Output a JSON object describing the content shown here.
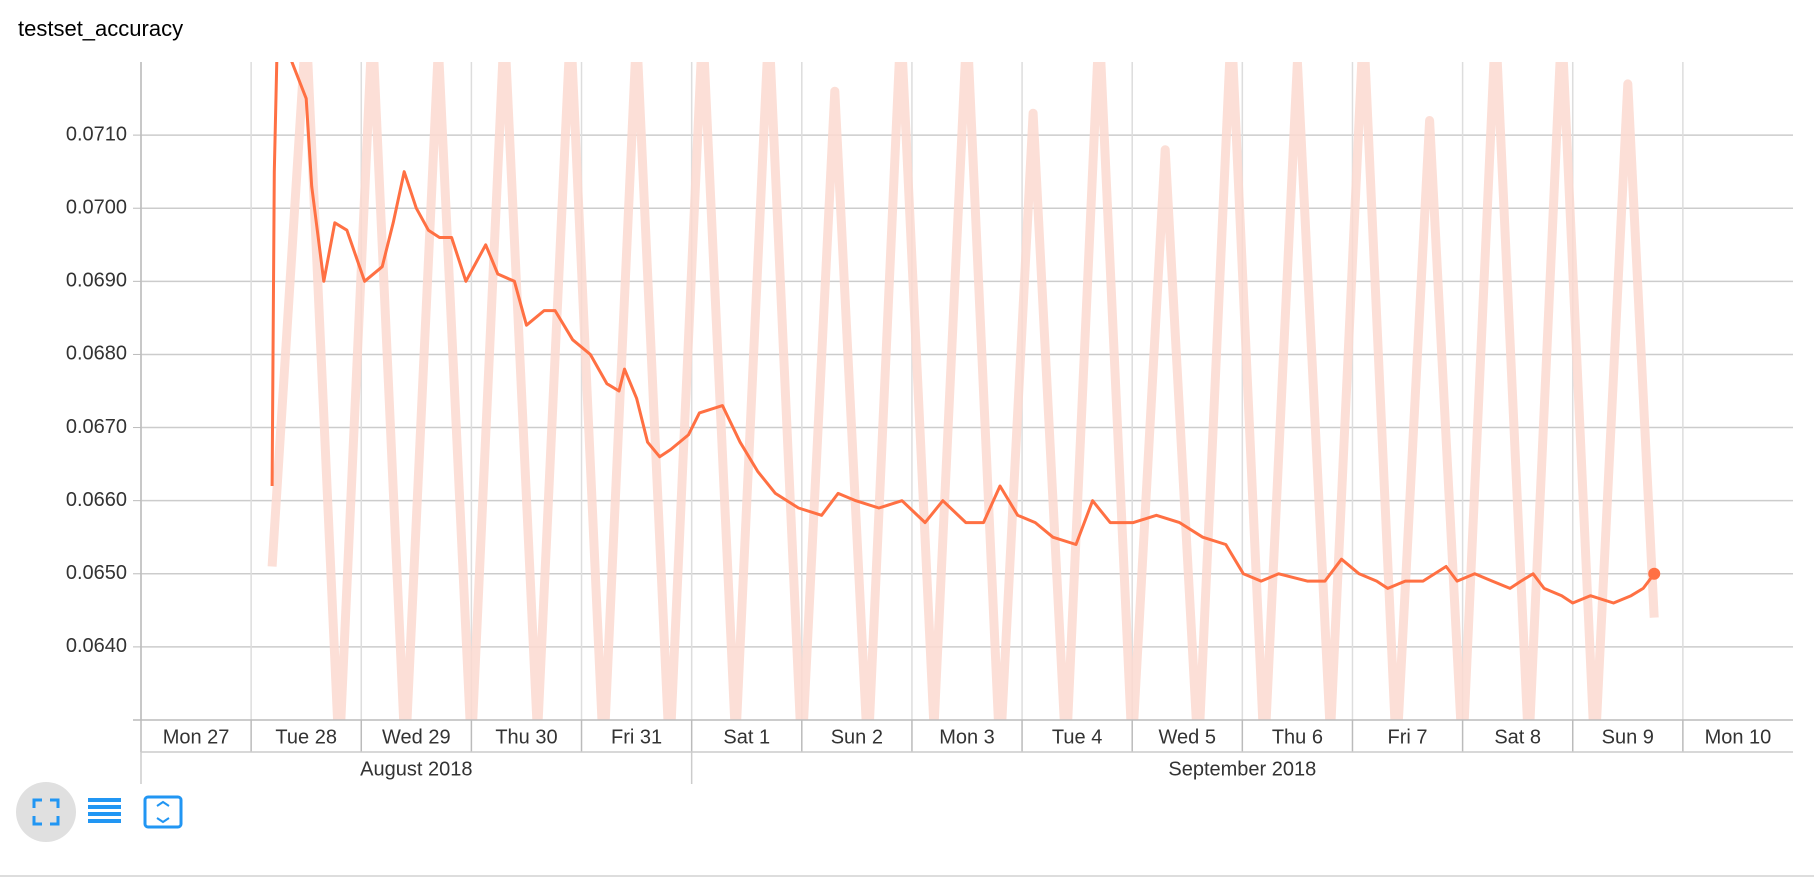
{
  "chart_data": {
    "type": "line",
    "title": "testset_accuracy",
    "xlim": [
      0,
      15
    ],
    "xticks": [
      {
        "value": 0,
        "label": "Mon 27"
      },
      {
        "value": 1,
        "label": "Tue 28"
      },
      {
        "value": 2,
        "label": "Wed 29"
      },
      {
        "value": 3,
        "label": "Thu 30"
      },
      {
        "value": 4,
        "label": "Fri 31"
      },
      {
        "value": 5,
        "label": "Sat 1"
      },
      {
        "value": 6,
        "label": "Sun 2"
      },
      {
        "value": 7,
        "label": "Mon 3"
      },
      {
        "value": 8,
        "label": "Tue 4"
      },
      {
        "value": 9,
        "label": "Wed 5"
      },
      {
        "value": 10,
        "label": "Thu 6"
      },
      {
        "value": 11,
        "label": "Fri 7"
      },
      {
        "value": 12,
        "label": "Sat 8"
      },
      {
        "value": 13,
        "label": "Sun 9"
      },
      {
        "value": 14,
        "label": "Mon 10"
      }
    ],
    "x_groups": [
      {
        "label": "August 2018",
        "start": 0,
        "end": 5
      },
      {
        "label": "September 2018",
        "start": 5,
        "end": 15
      }
    ],
    "ylim": [
      0.063,
      0.072
    ],
    "yticks": [
      {
        "value": 0.064,
        "label": "0.0640"
      },
      {
        "value": 0.065,
        "label": "0.0650"
      },
      {
        "value": 0.066,
        "label": "0.0660"
      },
      {
        "value": 0.067,
        "label": "0.0670"
      },
      {
        "value": 0.068,
        "label": "0.0680"
      },
      {
        "value": 0.069,
        "label": "0.0690"
      },
      {
        "value": 0.07,
        "label": "0.0700"
      },
      {
        "value": 0.071,
        "label": "0.0710"
      }
    ],
    "grid": true,
    "series": [
      {
        "color": "#fcd9d0",
        "x": [
          1.19,
          1.5,
          1.8,
          2.1,
          2.4,
          2.7,
          3.0,
          3.3,
          3.6,
          3.9,
          4.2,
          4.5,
          4.8,
          5.1,
          5.4,
          5.7,
          6.0,
          6.3,
          6.6,
          6.9,
          7.2,
          7.5,
          7.8,
          8.1,
          8.4,
          8.7,
          9.0,
          9.3,
          9.6,
          9.9,
          10.2,
          10.5,
          10.8,
          11.1,
          11.4,
          11.7,
          12.0,
          12.3,
          12.6,
          12.9,
          13.2,
          13.5,
          13.74
        ],
        "values": [
          0.0651,
          0.0725,
          0.0625,
          0.0725,
          0.0625,
          0.0722,
          0.0626,
          0.0725,
          0.0628,
          0.0725,
          0.0625,
          0.0724,
          0.0625,
          0.0725,
          0.0627,
          0.0725,
          0.0625,
          0.0716,
          0.0625,
          0.0725,
          0.0629,
          0.0725,
          0.0625,
          0.0713,
          0.0625,
          0.0725,
          0.0626,
          0.0708,
          0.0625,
          0.0725,
          0.0625,
          0.072,
          0.0628,
          0.0725,
          0.0625,
          0.0712,
          0.0625,
          0.0725,
          0.0626,
          0.0725,
          0.0625,
          0.0717,
          0.0644
        ]
      },
      {
        "color": "#ff7043",
        "x": [
          1.19,
          1.21,
          1.24,
          1.5,
          1.55,
          1.66,
          1.76,
          1.87,
          2.03,
          2.19,
          2.29,
          2.39,
          2.5,
          2.61,
          2.71,
          2.82,
          2.95,
          3.13,
          3.24,
          3.39,
          3.5,
          3.66,
          3.76,
          3.92,
          4.08,
          4.23,
          4.34,
          4.39,
          4.5,
          4.6,
          4.71,
          4.81,
          4.97,
          5.07,
          5.28,
          5.44,
          5.6,
          5.76,
          5.97,
          6.18,
          6.33,
          6.49,
          6.7,
          6.91,
          7.12,
          7.28,
          7.49,
          7.65,
          7.8,
          7.96,
          8.12,
          8.28,
          8.49,
          8.64,
          8.8,
          9.01,
          9.22,
          9.43,
          9.64,
          9.85,
          10.01,
          10.17,
          10.33,
          10.59,
          10.75,
          10.9,
          11.06,
          11.22,
          11.32,
          11.48,
          11.64,
          11.85,
          11.95,
          12.11,
          12.27,
          12.43,
          12.53,
          12.64,
          12.74,
          12.9,
          13.0,
          13.16,
          13.37,
          13.53,
          13.64,
          13.74
        ],
        "values": [
          0.0662,
          0.0705,
          0.0725,
          0.0715,
          0.0703,
          0.069,
          0.0698,
          0.0697,
          0.069,
          0.0692,
          0.0698,
          0.0705,
          0.07,
          0.0697,
          0.0696,
          0.0696,
          0.069,
          0.0695,
          0.0691,
          0.069,
          0.0684,
          0.0686,
          0.0686,
          0.0682,
          0.068,
          0.0676,
          0.0675,
          0.0678,
          0.0674,
          0.0668,
          0.0666,
          0.0667,
          0.0669,
          0.0672,
          0.0673,
          0.0668,
          0.0664,
          0.0661,
          0.0659,
          0.0658,
          0.0661,
          0.066,
          0.0659,
          0.066,
          0.0657,
          0.066,
          0.0657,
          0.0657,
          0.0662,
          0.0658,
          0.0657,
          0.0655,
          0.0654,
          0.066,
          0.0657,
          0.0657,
          0.0658,
          0.0657,
          0.0655,
          0.0654,
          0.065,
          0.0649,
          0.065,
          0.0649,
          0.0649,
          0.0652,
          0.065,
          0.0649,
          0.0648,
          0.0649,
          0.0649,
          0.0651,
          0.0649,
          0.065,
          0.0649,
          0.0648,
          0.0649,
          0.065,
          0.0648,
          0.0647,
          0.0646,
          0.0647,
          0.0646,
          0.0647,
          0.0648,
          0.065
        ]
      }
    ]
  }
}
